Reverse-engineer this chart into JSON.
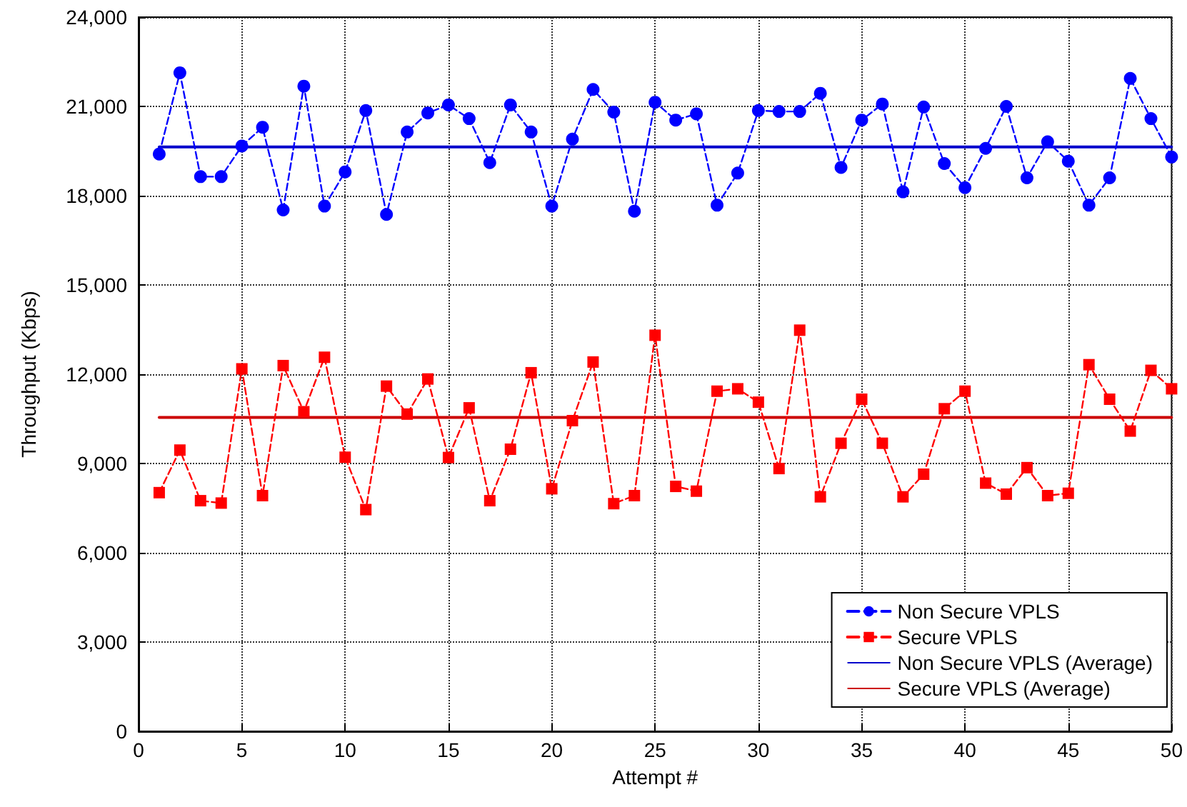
{
  "chart_data": {
    "type": "line",
    "xlabel": "Attempt #",
    "ylabel": "Throughput (Kbps)",
    "x": [
      1,
      2,
      3,
      4,
      5,
      6,
      7,
      8,
      9,
      10,
      11,
      12,
      13,
      14,
      15,
      16,
      17,
      18,
      19,
      20,
      21,
      22,
      23,
      24,
      25,
      26,
      27,
      28,
      29,
      30,
      31,
      32,
      33,
      34,
      35,
      36,
      37,
      38,
      39,
      40,
      41,
      42,
      43,
      44,
      45,
      46,
      47,
      48,
      49,
      50
    ],
    "series": [
      {
        "name": "Non Secure VPLS",
        "color": "#0000ff",
        "marker": "circle",
        "line_style": "dashed",
        "values": [
          19400,
          22130,
          18640,
          18640,
          19670,
          20300,
          17520,
          21680,
          17650,
          18800,
          20860,
          17370,
          20140,
          20780,
          21050,
          20590,
          19110,
          21050,
          20140,
          17650,
          19900,
          21570,
          20810,
          17480,
          21140,
          20540,
          20750,
          17680,
          18760,
          20860,
          20830,
          20830,
          21440,
          18950,
          20540,
          21080,
          18130,
          20980,
          19080,
          18270,
          19590,
          21000,
          18600,
          19810,
          19160,
          17680,
          18600,
          21940,
          20590,
          19300
        ]
      },
      {
        "name": "Secure VPLS",
        "color": "#ff0000",
        "marker": "square",
        "line_style": "dashed",
        "values": [
          8020,
          9450,
          7750,
          7670,
          12180,
          7920,
          12290,
          10740,
          12570,
          9210,
          7450,
          11600,
          10660,
          11840,
          9200,
          10870,
          7750,
          9480,
          12050,
          8150,
          10440,
          12410,
          7650,
          7920,
          13310,
          8230,
          8070,
          11430,
          11510,
          11060,
          8830,
          13480,
          7880,
          9680,
          11160,
          9680,
          7880,
          8640,
          10840,
          11430,
          8340,
          7970,
          8860,
          7920,
          8000,
          12320,
          11160,
          10090,
          12130,
          11510
        ]
      },
      {
        "name": "Non Secure VPLS (Average)",
        "color": "#0000cc",
        "marker": "none",
        "line_style": "solid",
        "values": [
          19640,
          19640,
          19640,
          19640,
          19640,
          19640,
          19640,
          19640,
          19640,
          19640,
          19640,
          19640,
          19640,
          19640,
          19640,
          19640,
          19640,
          19640,
          19640,
          19640,
          19640,
          19640,
          19640,
          19640,
          19640,
          19640,
          19640,
          19640,
          19640,
          19640,
          19640,
          19640,
          19640,
          19640,
          19640,
          19640,
          19640,
          19640,
          19640,
          19640,
          19640,
          19640,
          19640,
          19640,
          19640,
          19640,
          19640,
          19640,
          19640,
          19640
        ]
      },
      {
        "name": "Secure VPLS (Average)",
        "color": "#cc0000",
        "marker": "none",
        "line_style": "solid",
        "values": [
          10550,
          10550,
          10550,
          10550,
          10550,
          10550,
          10550,
          10550,
          10550,
          10550,
          10550,
          10550,
          10550,
          10550,
          10550,
          10550,
          10550,
          10550,
          10550,
          10550,
          10550,
          10550,
          10550,
          10550,
          10550,
          10550,
          10550,
          10550,
          10550,
          10550,
          10550,
          10550,
          10550,
          10550,
          10550,
          10550,
          10550,
          10550,
          10550,
          10550,
          10550,
          10550,
          10550,
          10550,
          10550,
          10550,
          10550,
          10550,
          10550,
          10550
        ]
      }
    ],
    "xlim": [
      0,
      50
    ],
    "xticks": [
      0,
      5,
      10,
      15,
      20,
      25,
      30,
      35,
      40,
      45,
      50
    ],
    "ylim": [
      0,
      24000
    ],
    "yticks": [
      {
        "value": 0,
        "label": "0"
      },
      {
        "value": 3000,
        "label": "3,000"
      },
      {
        "value": 6000,
        "label": "6,000"
      },
      {
        "value": 9000,
        "label": "9,000"
      },
      {
        "value": 12000,
        "label": "12,000"
      },
      {
        "value": 15000,
        "label": "15,000"
      },
      {
        "value": 18000,
        "label": "18,000"
      },
      {
        "value": 21000,
        "label": "21,000"
      },
      {
        "value": 24000,
        "label": "24,000"
      }
    ],
    "grid": true,
    "legend": "bottom right"
  }
}
